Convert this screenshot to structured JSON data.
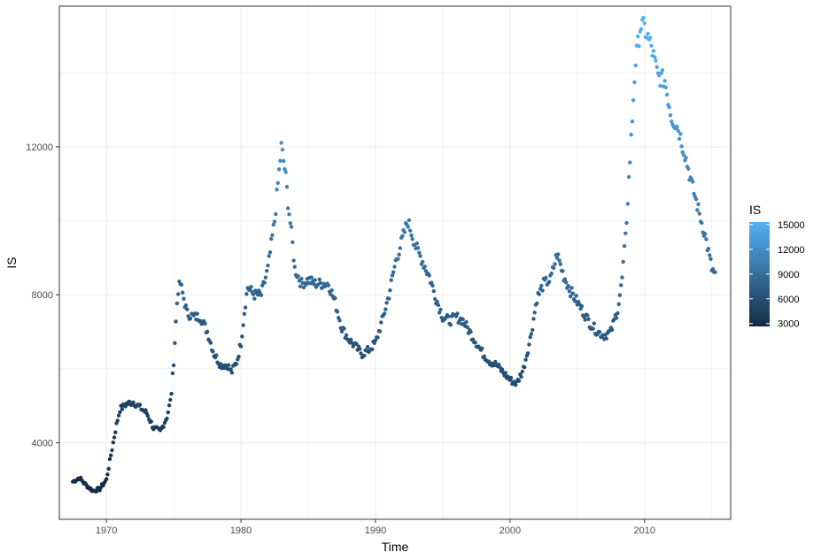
{
  "chart_data": {
    "type": "scatter",
    "xlabel": "Time",
    "ylabel": "IS",
    "xlim": [
      1966.5,
      2016.4
    ],
    "ylim": [
      1930,
      15800
    ],
    "x_ticks": [
      1970,
      1980,
      1990,
      2000,
      2010
    ],
    "x_tick_labels": [
      "1970",
      "1980",
      "1990",
      "2000",
      "2010"
    ],
    "y_ticks": [
      4000,
      8000,
      12000
    ],
    "y_tick_labels": [
      "4000",
      "8000",
      "12000"
    ],
    "grid": true,
    "color_scale": {
      "title": "IS",
      "low_color": "#132B43",
      "high_color": "#56B1F7",
      "min": 2650,
      "max": 15300,
      "breaks": [
        3000,
        6000,
        9000,
        12000,
        15000
      ],
      "break_labels": [
        "3000",
        "6000",
        "9000",
        "12000",
        "15000"
      ]
    },
    "legend_position": "right",
    "anchors": [
      [
        1967.5,
        2950
      ],
      [
        1968.0,
        3050
      ],
      [
        1968.5,
        2850
      ],
      [
        1969.0,
        2700
      ],
      [
        1969.5,
        2750
      ],
      [
        1969.8,
        2900
      ],
      [
        1970.0,
        3000
      ],
      [
        1970.3,
        3600
      ],
      [
        1970.7,
        4400
      ],
      [
        1971.0,
        4900
      ],
      [
        1971.5,
        5050
      ],
      [
        1972.0,
        5100
      ],
      [
        1972.5,
        4950
      ],
      [
        1973.0,
        4800
      ],
      [
        1973.5,
        4400
      ],
      [
        1974.0,
        4300
      ],
      [
        1974.5,
        4700
      ],
      [
        1974.8,
        5200
      ],
      [
        1975.0,
        6200
      ],
      [
        1975.3,
        8100
      ],
      [
        1975.5,
        8300
      ],
      [
        1976.0,
        7500
      ],
      [
        1976.5,
        7400
      ],
      [
        1977.0,
        7400
      ],
      [
        1977.5,
        7000
      ],
      [
        1978.0,
        6400
      ],
      [
        1978.5,
        6100
      ],
      [
        1979.0,
        6100
      ],
      [
        1979.3,
        5900
      ],
      [
        1979.7,
        6200
      ],
      [
        1980.0,
        6700
      ],
      [
        1980.3,
        7700
      ],
      [
        1980.5,
        8200
      ],
      [
        1981.0,
        8000
      ],
      [
        1981.5,
        8000
      ],
      [
        1982.0,
        8700
      ],
      [
        1982.5,
        10000
      ],
      [
        1982.8,
        11200
      ],
      [
        1983.0,
        12000
      ],
      [
        1983.3,
        11300
      ],
      [
        1983.5,
        10500
      ],
      [
        1983.8,
        9500
      ],
      [
        1984.0,
        8700
      ],
      [
        1984.5,
        8300
      ],
      [
        1985.0,
        8400
      ],
      [
        1985.5,
        8300
      ],
      [
        1986.0,
        8300
      ],
      [
        1986.5,
        8300
      ],
      [
        1987.0,
        7800
      ],
      [
        1987.5,
        7100
      ],
      [
        1988.0,
        6800
      ],
      [
        1988.5,
        6600
      ],
      [
        1989.0,
        6400
      ],
      [
        1989.5,
        6500
      ],
      [
        1990.0,
        6700
      ],
      [
        1990.5,
        7300
      ],
      [
        1991.0,
        8000
      ],
      [
        1991.5,
        8900
      ],
      [
        1992.0,
        9500
      ],
      [
        1992.4,
        10000
      ],
      [
        1993.0,
        9300
      ],
      [
        1993.5,
        8900
      ],
      [
        1994.0,
        8500
      ],
      [
        1994.5,
        7900
      ],
      [
        1995.0,
        7400
      ],
      [
        1995.5,
        7300
      ],
      [
        1996.0,
        7400
      ],
      [
        1996.5,
        7300
      ],
      [
        1997.0,
        7000
      ],
      [
        1997.5,
        6700
      ],
      [
        1998.0,
        6400
      ],
      [
        1998.5,
        6200
      ],
      [
        1999.0,
        6100
      ],
      [
        1999.5,
        5900
      ],
      [
        2000.0,
        5700
      ],
      [
        2000.5,
        5600
      ],
      [
        2001.0,
        6000
      ],
      [
        2001.5,
        6800
      ],
      [
        2002.0,
        7900
      ],
      [
        2002.5,
        8300
      ],
      [
        2003.0,
        8400
      ],
      [
        2003.5,
        9100
      ],
      [
        2004.0,
        8500
      ],
      [
        2004.5,
        8100
      ],
      [
        2005.0,
        7800
      ],
      [
        2005.5,
        7500
      ],
      [
        2006.0,
        7200
      ],
      [
        2006.5,
        7000
      ],
      [
        2007.0,
        6900
      ],
      [
        2007.5,
        7000
      ],
      [
        2008.0,
        7600
      ],
      [
        2008.3,
        8300
      ],
      [
        2008.6,
        9600
      ],
      [
        2009.0,
        12200
      ],
      [
        2009.3,
        14200
      ],
      [
        2009.7,
        15300
      ],
      [
        2010.0,
        15200
      ],
      [
        2010.5,
        14700
      ],
      [
        2011.0,
        13900
      ],
      [
        2011.5,
        13800
      ],
      [
        2012.0,
        12800
      ],
      [
        2012.5,
        12500
      ],
      [
        2013.0,
        11800
      ],
      [
        2013.5,
        11000
      ],
      [
        2014.0,
        10300
      ],
      [
        2014.5,
        9600
      ],
      [
        2015.0,
        8700
      ],
      [
        2015.3,
        8500
      ]
    ]
  }
}
